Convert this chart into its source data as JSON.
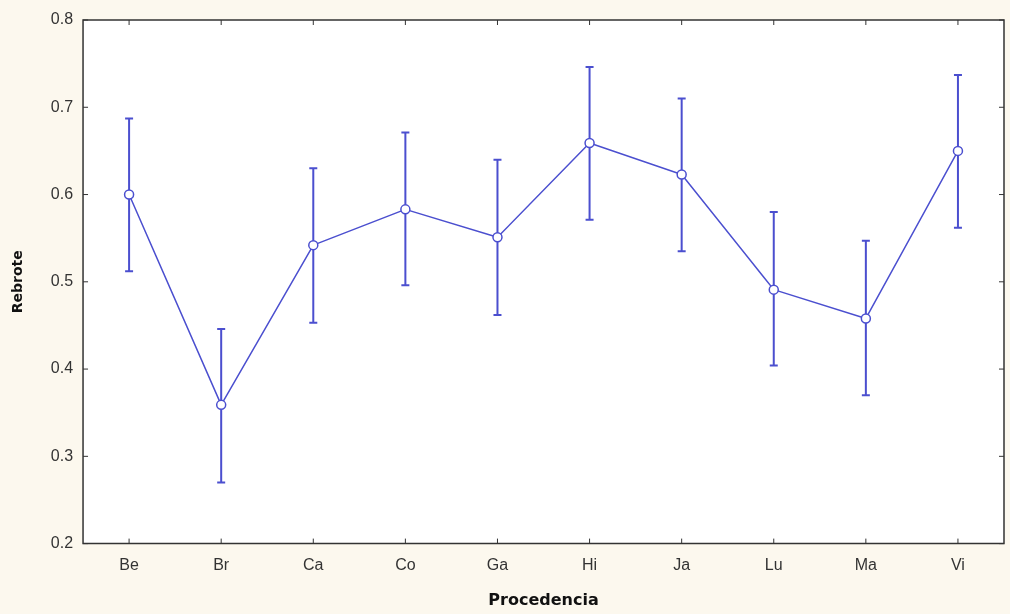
{
  "chart_data": {
    "type": "line",
    "xlabel": "Procedencia",
    "ylabel": "Rebrote",
    "categories": [
      "Be",
      "Br",
      "Ca",
      "Co",
      "Ga",
      "Hi",
      "Ja",
      "Lu",
      "Ma",
      "Vi"
    ],
    "series": [
      {
        "color": "#4b4fcf",
        "values": [
          0.6,
          0.359,
          0.542,
          0.583,
          0.551,
          0.659,
          0.623,
          0.491,
          0.458,
          0.65
        ],
        "errors": [
          [
            0.512,
            0.687
          ],
          [
            0.27,
            0.446
          ],
          [
            0.453,
            0.63
          ],
          [
            0.496,
            0.671
          ],
          [
            0.462,
            0.64
          ],
          [
            0.571,
            0.746
          ],
          [
            0.535,
            0.71
          ],
          [
            0.404,
            0.58
          ],
          [
            0.37,
            0.547
          ],
          [
            0.562,
            0.737
          ]
        ]
      }
    ],
    "ylim": [
      0.2,
      0.8
    ],
    "yticks": [
      0.2,
      0.3,
      0.4,
      0.5,
      0.6,
      0.7,
      0.8
    ],
    "grid": false,
    "legend": false,
    "marker": "circle",
    "line_style": "solid"
  }
}
